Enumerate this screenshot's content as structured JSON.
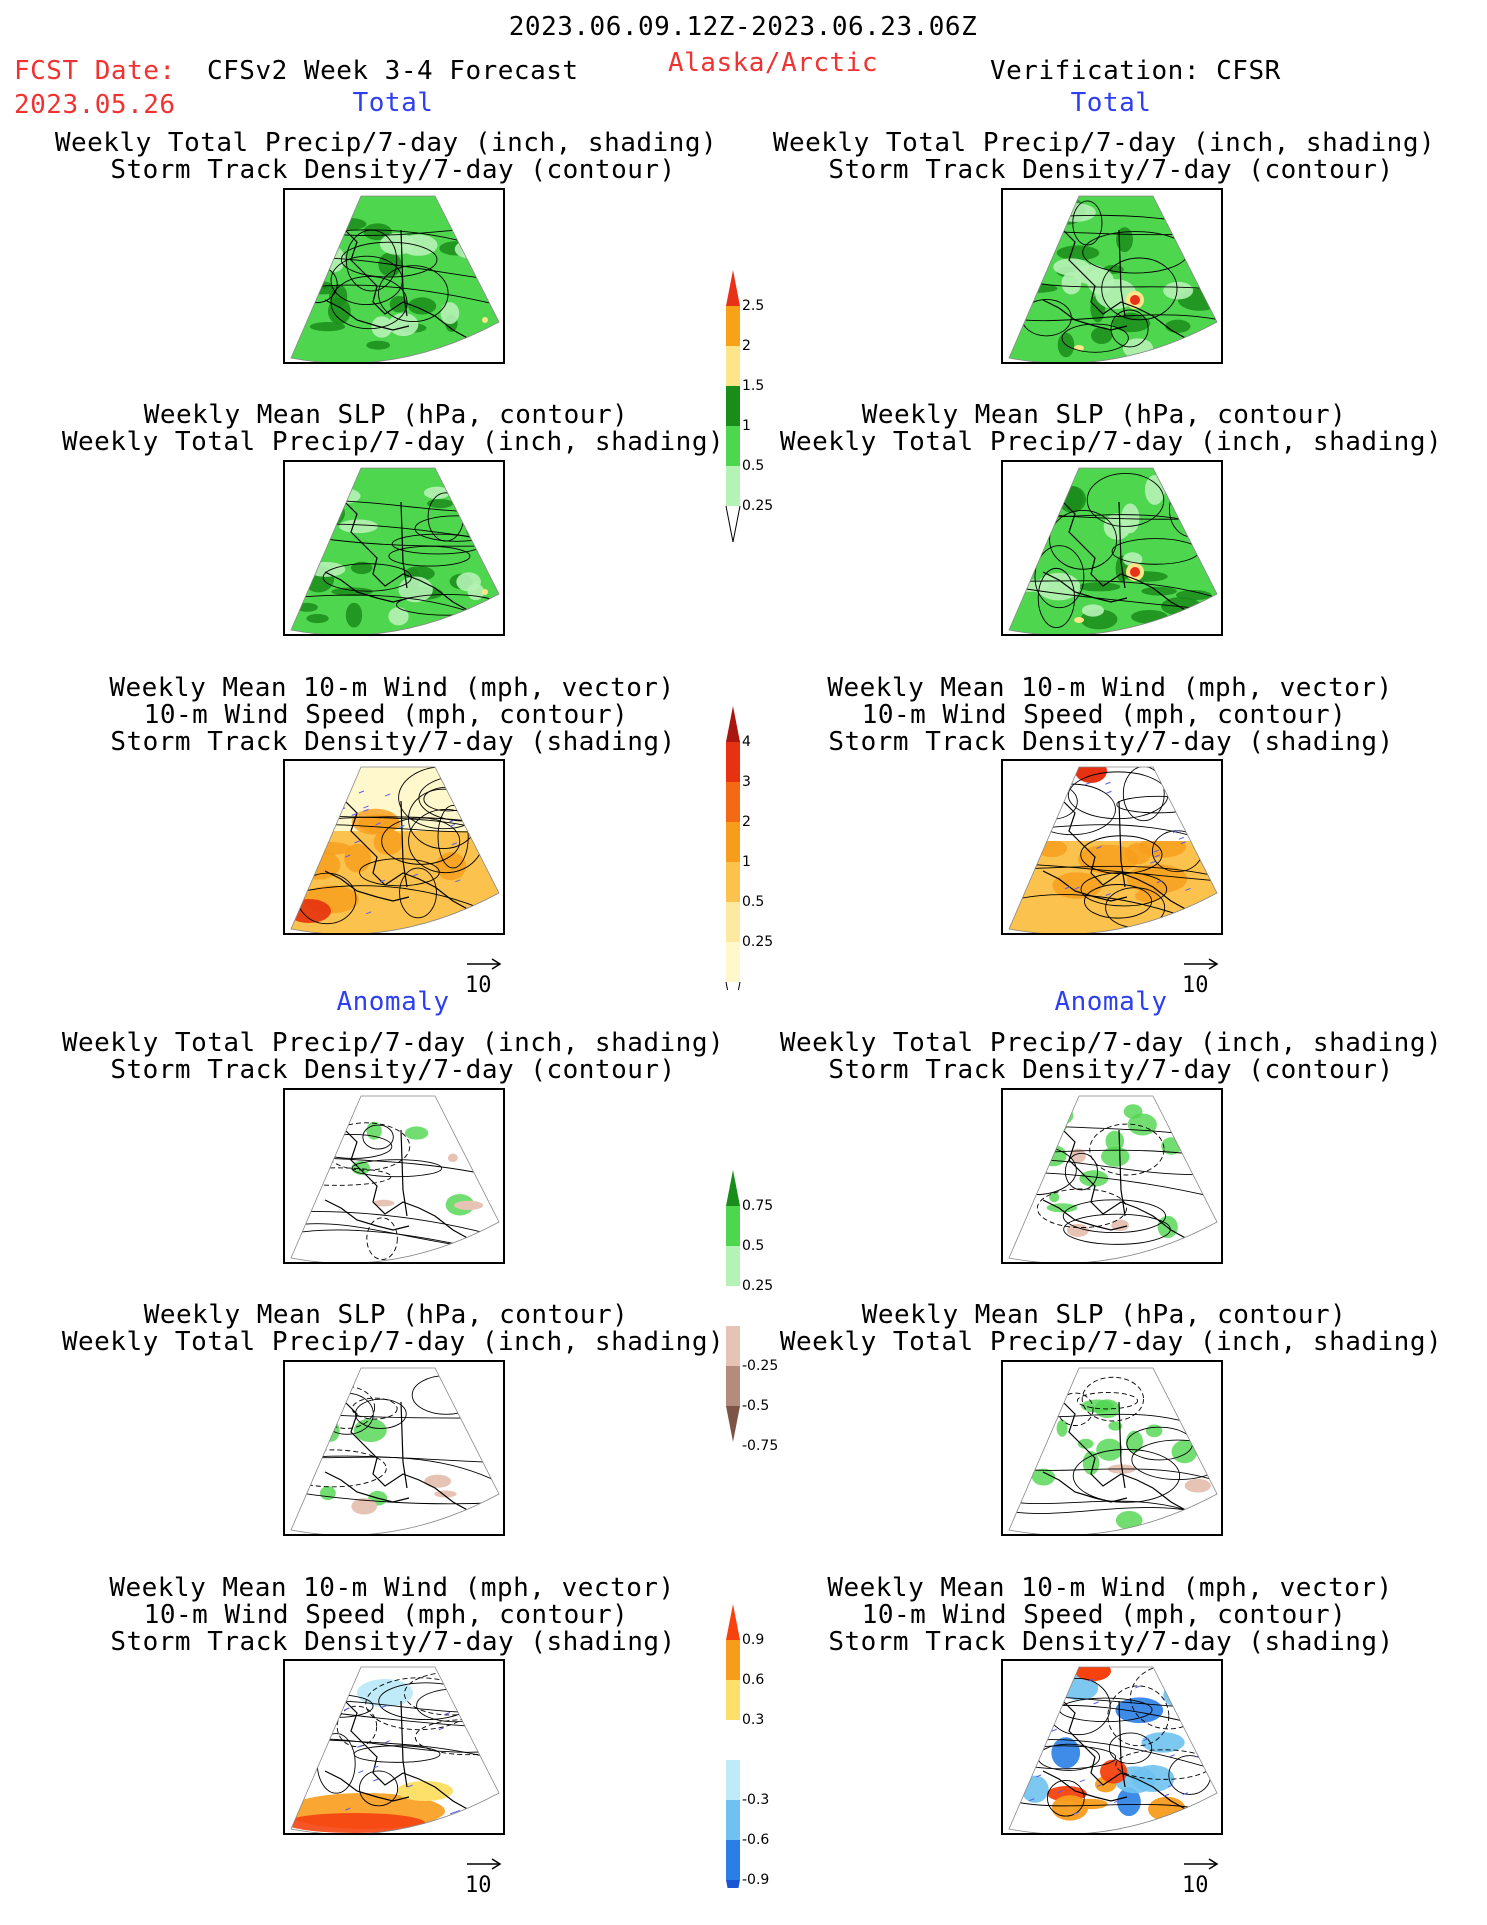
{
  "header": {
    "period": "2023.06.09.12Z-2023.06.23.06Z",
    "fcst_label": "FCST Date:",
    "fcst_date": "2023.05.26",
    "model": "CFSv2 Week 3-4 Forecast",
    "region": "Alaska/Arctic",
    "verification": "Verification: CFSR"
  },
  "sections": {
    "total": "Total",
    "anomaly": "Anomaly"
  },
  "titles": {
    "precip_track": [
      "Weekly Total Precip/7-day (inch, shading)",
      "Storm Track Density/7-day (contour)"
    ],
    "slp_precip": [
      "Weekly Mean SLP (hPa, contour)",
      "Weekly Total Precip/7-day (inch, shading)"
    ],
    "wind": [
      "Weekly Mean 10-m Wind (mph, vector)",
      "10-m Wind Speed (mph, contour)",
      "Storm Track Density/7-day (shading)"
    ]
  },
  "arrow_label": "10",
  "colorbars": {
    "precip_total": {
      "labels": [
        "2.5",
        "2",
        "1.5",
        "1",
        "0.5",
        "0.25"
      ],
      "colors": [
        "#e83218",
        "#f7a318",
        "#fee58a",
        "#1a8c1a",
        "#4fd64f",
        "#b5f2b5"
      ]
    },
    "track_total": {
      "labels": [
        "4",
        "3",
        "2",
        "1",
        "0.5",
        "0.25"
      ],
      "colors": [
        "#a8160f",
        "#e63210",
        "#f46a14",
        "#f89c1c",
        "#fbc24d",
        "#fde9a0",
        "#fff8cc"
      ]
    },
    "precip_anom": {
      "labels": [
        "0.75",
        "0.5",
        "0.25",
        "-0.25",
        "-0.5",
        "-0.75"
      ],
      "colors": [
        "#1a8c1a",
        "#4fd64f",
        "#b5f2b5",
        "#ffffff",
        "#e6c3b4",
        "#b48c7d",
        "#7d5546"
      ]
    },
    "track_anom": {
      "labels": [
        "0.9",
        "0.6",
        "0.3",
        "-0.3",
        "-0.6",
        "-0.9"
      ],
      "colors": [
        "#f5420f",
        "#f89c1c",
        "#fde06a",
        "#ffffff",
        "#bfeaf8",
        "#6fc2f0",
        "#2a7fe6",
        "#1a55d4"
      ]
    }
  }
}
